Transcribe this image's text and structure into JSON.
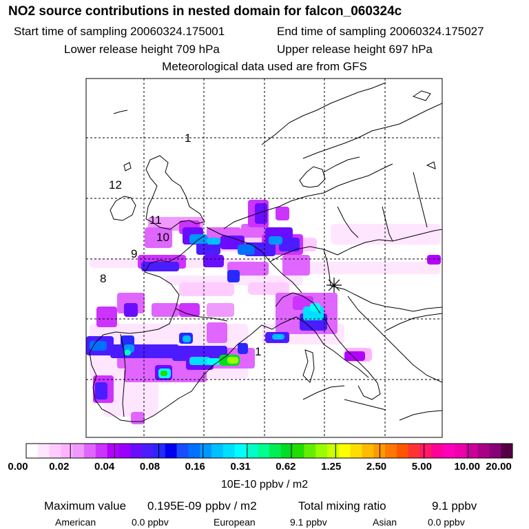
{
  "header": {
    "title": "NO2 source contributions in nested domain for falcon_060324c",
    "start_time": "Start time of sampling 20060324.175001",
    "end_time": "End time of sampling 20060324.175027",
    "lower_height": "Lower release height  709 hPa",
    "upper_height": "Upper release height  697 hPa",
    "met_data": "Meteorological data used are from GFS"
  },
  "chart_data": {
    "type": "heatmap",
    "title": "NO2 source contributions in nested domain for falcon_060324c",
    "colorbar": {
      "ticks": [
        "0.00",
        "0.02",
        "0.04",
        "0.08",
        "0.16",
        "0.31",
        "0.62",
        "1.25",
        "2.50",
        "5.00",
        "10.00",
        "20.00"
      ],
      "units": "10E-10 ppbv / m2",
      "colors": [
        "#ffffff",
        "#ffe6ff",
        "#ffccff",
        "#ffb3ff",
        "#f099ff",
        "#e066ff",
        "#cc33ff",
        "#b300ff",
        "#9900ff",
        "#6a0dff",
        "#4b1cff",
        "#2828ff",
        "#0000ee",
        "#1a4cff",
        "#0070ff",
        "#0096ff",
        "#00bfff",
        "#00dfff",
        "#00ffff",
        "#00ffc8",
        "#00ff90",
        "#00ee55",
        "#00dd22",
        "#22dd00",
        "#66ee00",
        "#99ff00",
        "#ccff00",
        "#ffff00",
        "#ffdd00",
        "#ffbb00",
        "#ff9900",
        "#ff7700",
        "#ff5500",
        "#ff3333",
        "#ff1a66",
        "#ff0099",
        "#ff00bb",
        "#ee00aa",
        "#cc0099",
        "#aa0088",
        "#880077",
        "#550044"
      ]
    },
    "map_labels": [
      "1",
      "12",
      "11",
      "10",
      "9",
      "8",
      "1"
    ],
    "release_site": "asterisk"
  },
  "footer": {
    "max_label": "Maximum value",
    "max_value": "0.195E-09",
    "max_unit": "ppbv / m2",
    "total_label": "Total mixing ratio",
    "total_value": "9.1 ppbv",
    "regions": [
      {
        "name": "American",
        "value": "0.0 ppbv"
      },
      {
        "name": "European",
        "value": "9.1 ppbv"
      },
      {
        "name": "Asian",
        "value": "0.0 ppbv"
      }
    ]
  }
}
